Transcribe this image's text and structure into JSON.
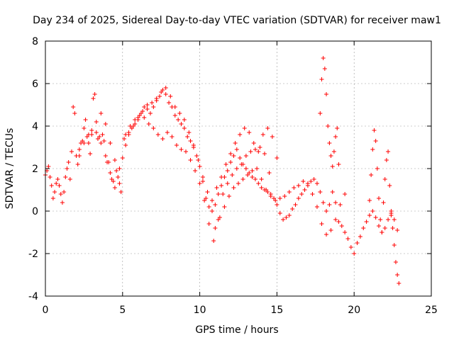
{
  "chart_data": {
    "type": "scatter",
    "title": "Day 234 of 2025, Sidereal Day-to-day VTEC variation (SDTVAR) for receiver maw1",
    "xlabel": "GPS time / hours",
    "ylabel": "SDTVAR / TECUs",
    "xlim": [
      0,
      25
    ],
    "ylim": [
      -4,
      8
    ],
    "xticks": [
      0,
      5,
      10,
      15,
      20,
      25
    ],
    "yticks": [
      -4,
      -2,
      0,
      2,
      4,
      6,
      8
    ],
    "grid": true,
    "marker": "plus",
    "color": "#ff0000",
    "series": [
      {
        "name": "maw1",
        "traces": [
          {
            "x": [
              0.0,
              0.1,
              0.2,
              0.3,
              0.4,
              0.5,
              0.6,
              0.7,
              0.8,
              0.9,
              1.0,
              1.1,
              1.2,
              1.3,
              1.4,
              1.5,
              1.6,
              1.7,
              1.8,
              1.9,
              2.0,
              2.1,
              2.2,
              2.3,
              2.4,
              2.5,
              2.6,
              2.7,
              2.8,
              2.9,
              3.0,
              3.1,
              3.2,
              3.3,
              3.4,
              3.5,
              3.6,
              3.7,
              3.8,
              3.9,
              4.0,
              4.1,
              4.2,
              4.3,
              4.4,
              4.5,
              4.6,
              4.7,
              4.8,
              4.9,
              5.0,
              5.2,
              5.4,
              5.6,
              5.8,
              6.0,
              6.2,
              6.4,
              6.6,
              6.8,
              7.0,
              7.2,
              7.4,
              7.6,
              7.8,
              8.0,
              8.2,
              8.4,
              8.6,
              8.8,
              9.0,
              9.2,
              9.4,
              9.6,
              9.8,
              10.0,
              10.2,
              10.4,
              10.6,
              10.8,
              11.0,
              11.2,
              11.4,
              11.6,
              11.8,
              12.0,
              12.2,
              12.4,
              12.6,
              12.8,
              13.0,
              13.2,
              13.4,
              13.6,
              13.8,
              14.0,
              14.2,
              14.4,
              14.6,
              14.8,
              15.0,
              15.2,
              15.4,
              15.6,
              15.8,
              16.0,
              16.2,
              16.4,
              16.6,
              16.8,
              17.0,
              17.2,
              17.4,
              17.6,
              17.8,
              18.0,
              18.2,
              18.4,
              18.6,
              18.8,
              19.0,
              19.2,
              19.4,
              19.6,
              19.8,
              20.0,
              20.2,
              20.4,
              20.6,
              20.8,
              21.0,
              21.2,
              21.4,
              21.6,
              21.8,
              22.0,
              22.2,
              22.4,
              22.6,
              22.8
            ],
            "y": [
              1.7,
              1.9,
              2.1,
              1.6,
              1.2,
              0.6,
              0.9,
              1.3,
              1.5,
              1.2,
              0.8,
              0.4,
              0.9,
              1.6,
              2.0,
              2.3,
              1.5,
              2.8,
              4.9,
              4.6,
              2.6,
              2.2,
              2.6,
              3.2,
              3.3,
              3.9,
              4.3,
              3.5,
              3.2,
              2.7,
              3.6,
              5.3,
              5.5,
              3.7,
              3.4,
              3.5,
              3.2,
              3.6,
              3.3,
              2.6,
              2.3,
              2.3,
              1.8,
              1.5,
              1.4,
              1.1,
              1.9,
              1.6,
              1.3,
              0.9,
              2.5,
              3.1,
              3.6,
              3.9,
              4.1,
              4.3,
              4.6,
              4.9,
              4.8,
              4.6,
              4.9,
              5.2,
              5.4,
              5.7,
              5.5,
              5.1,
              4.9,
              4.5,
              4.3,
              4.1,
              3.9,
              3.5,
              3.3,
              3.0,
              2.6,
              2.1,
              1.4,
              0.6,
              0.2,
              0.0,
              0.3,
              0.8,
              1.2,
              1.6,
              1.9,
              2.3,
              2.6,
              2.9,
              2.5,
              2.2,
              2.0,
              1.8,
              1.6,
              1.5,
              1.3,
              1.1,
              1.0,
              0.9,
              0.8,
              0.6,
              0.3,
              -0.1,
              -0.4,
              -0.3,
              -0.2,
              0.1,
              0.3,
              0.6,
              0.8,
              1.0,
              1.2,
              1.4,
              1.5,
              1.3,
              0.9,
              0.4,
              0.0,
              0.3,
              0.9,
              0.4,
              -0.5,
              -0.7,
              -1.0,
              -1.3,
              -1.7,
              -2.0,
              -1.5,
              -1.2,
              -0.8,
              -0.5,
              -0.2,
              0.0,
              -0.3,
              -0.7,
              -1.0,
              -0.8,
              -0.4,
              -0.1,
              -0.4,
              -0.9
            ]
          },
          {
            "x": [
              2.2,
              2.5,
              2.8,
              3.0,
              3.3,
              3.6,
              3.9,
              4.2,
              4.5,
              4.8,
              5.1,
              5.4,
              5.7,
              6.0,
              6.3,
              6.6,
              6.9,
              7.2,
              7.5,
              7.8,
              8.1,
              8.4,
              8.7,
              9.0,
              9.3,
              9.6,
              9.9,
              10.2,
              10.5,
              10.8,
              11.1,
              11.4,
              11.7,
              12.0,
              12.3,
              12.6,
              12.9,
              13.2,
              13.5,
              13.8,
              14.1,
              14.4,
              14.7,
              15.0
            ],
            "y": [
              2.9,
              3.2,
              3.6,
              3.8,
              4.2,
              4.6,
              4.1,
              3.2,
              2.4,
              2.0,
              3.4,
              3.7,
              4.0,
              4.4,
              4.7,
              5.0,
              5.1,
              5.3,
              5.6,
              5.8,
              5.4,
              4.9,
              4.6,
              4.3,
              3.7,
              3.1,
              2.4,
              1.6,
              0.9,
              0.5,
              1.1,
              1.6,
              2.2,
              2.7,
              3.2,
              3.6,
              3.9,
              3.7,
              3.2,
              2.8,
              3.6,
              3.9,
              3.5,
              2.5
            ]
          },
          {
            "x": [
              5.2,
              5.5,
              5.8,
              6.1,
              6.4,
              6.7,
              7.0,
              7.3,
              7.6,
              7.9,
              8.2,
              8.5,
              8.8,
              9.1,
              9.4,
              9.7,
              10.0,
              10.3,
              10.6,
              10.9,
              11.2,
              11.5,
              11.8,
              12.1,
              12.4,
              12.7,
              13.0,
              13.3,
              13.6,
              13.9,
              14.2,
              14.5
            ],
            "y": [
              3.6,
              4.0,
              4.3,
              4.5,
              4.4,
              4.1,
              3.9,
              3.6,
              3.4,
              3.7,
              3.5,
              3.1,
              2.9,
              2.8,
              2.4,
              1.9,
              1.3,
              0.5,
              -0.6,
              -1.4,
              -0.4,
              0.8,
              1.3,
              1.7,
              2.0,
              2.2,
              2.6,
              2.8,
              2.9,
              3.0,
              2.7,
              1.8
            ]
          },
          {
            "x": [
              11.0,
              11.3,
              11.6,
              11.9,
              12.2,
              12.5,
              12.8,
              13.1,
              13.4,
              13.7,
              14.0,
              14.3,
              14.6,
              14.9,
              15.2,
              15.5,
              15.8,
              16.1,
              16.4,
              16.7,
              17.0,
              17.3,
              17.6,
              17.9,
              18.2,
              18.5,
              18.8,
              19.1,
              19.4
            ],
            "y": [
              -0.8,
              -0.3,
              0.2,
              0.7,
              1.1,
              1.3,
              1.5,
              1.7,
              1.9,
              2.0,
              1.5,
              1.0,
              0.7,
              0.5,
              0.6,
              0.7,
              0.9,
              1.1,
              1.2,
              1.4,
              1.3,
              0.8,
              0.2,
              -0.6,
              -1.1,
              -0.9,
              -0.4,
              0.3,
              0.8
            ]
          },
          {
            "x": [
              17.8,
              17.9,
              18.0,
              18.1,
              18.2,
              18.3,
              18.4,
              18.5,
              18.6,
              18.7,
              18.8,
              18.9,
              19.0
            ],
            "y": [
              4.6,
              6.2,
              7.2,
              6.7,
              5.5,
              4.0,
              3.2,
              2.6,
              2.1,
              2.8,
              3.5,
              3.9,
              2.2
            ]
          },
          {
            "x": [
              21.0,
              21.1,
              21.2,
              21.3,
              21.4,
              21.5,
              21.6,
              21.7,
              21.8,
              21.9,
              22.0,
              22.1,
              22.2,
              22.3,
              22.4
            ],
            "y": [
              0.5,
              1.7,
              2.9,
              3.8,
              3.3,
              2.0,
              0.6,
              -0.4,
              -1.0,
              0.4,
              1.5,
              2.4,
              2.8,
              1.2,
              -0.2
            ]
          },
          {
            "x": [
              22.4,
              22.5,
              22.6,
              22.7,
              22.8,
              22.9
            ],
            "y": [
              0.0,
              -0.8,
              -1.6,
              -2.4,
              -3.0,
              -3.4
            ]
          }
        ]
      }
    ]
  }
}
